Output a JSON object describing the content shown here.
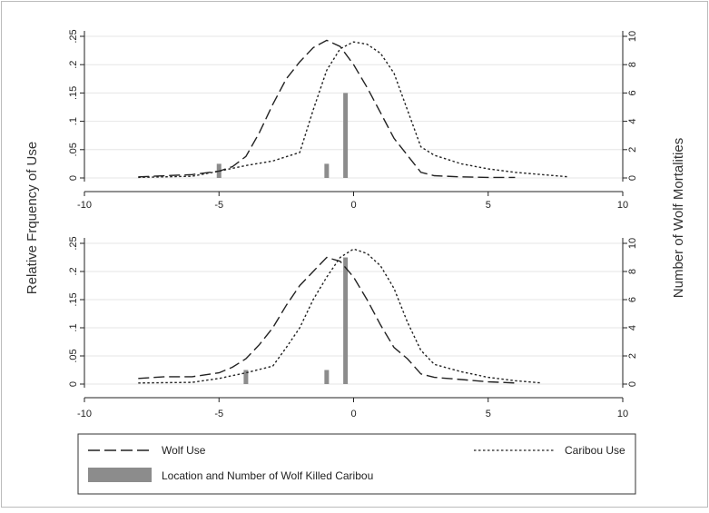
{
  "chart_data": [
    {
      "type": "line",
      "panel": "top",
      "xlim": [
        -10,
        10
      ],
      "ylim_left": [
        0,
        0.25
      ],
      "ylim_right": [
        0,
        10
      ],
      "x_ticks": [
        "-10",
        "-5",
        "0",
        "5",
        "10"
      ],
      "y_left_ticks": [
        "0",
        ".05",
        ".1",
        ".15",
        ".2",
        ".25"
      ],
      "y_right_ticks": [
        "0",
        "2",
        "4",
        "6",
        "8",
        "10"
      ],
      "grid": true,
      "series": [
        {
          "name": "Wolf Use",
          "axis": "left",
          "style": "dashed",
          "x": [
            -8,
            -7,
            -6,
            -5,
            -4.5,
            -4,
            -3.5,
            -3,
            -2.5,
            -2,
            -1.5,
            -1,
            -0.5,
            0,
            0.5,
            1,
            1.5,
            2,
            2.5,
            3,
            4,
            5,
            6
          ],
          "y": [
            0.002,
            0.004,
            0.006,
            0.012,
            0.02,
            0.038,
            0.08,
            0.13,
            0.175,
            0.205,
            0.23,
            0.243,
            0.232,
            0.2,
            0.16,
            0.115,
            0.07,
            0.04,
            0.01,
            0.004,
            0.002,
            0.001,
            0.001
          ]
        },
        {
          "name": "Caribou Use",
          "axis": "left",
          "style": "dotted",
          "x": [
            -8,
            -6,
            -5,
            -4,
            -3,
            -2,
            -1.5,
            -1,
            -0.5,
            0,
            0.5,
            1,
            1.5,
            2,
            2.5,
            3,
            4,
            5,
            6,
            7,
            8
          ],
          "y": [
            0.001,
            0.003,
            0.012,
            0.022,
            0.03,
            0.045,
            0.12,
            0.19,
            0.228,
            0.24,
            0.236,
            0.22,
            0.185,
            0.12,
            0.055,
            0.04,
            0.025,
            0.016,
            0.01,
            0.006,
            0.002
          ]
        }
      ],
      "bars": {
        "name": "Location and Number of Wolf Killed Caribou",
        "axis": "right",
        "x": [
          -5,
          -1,
          -0.3
        ],
        "values": [
          1,
          1,
          6
        ]
      }
    },
    {
      "type": "line",
      "panel": "bottom",
      "xlim": [
        -10,
        10
      ],
      "ylim_left": [
        0,
        0.25
      ],
      "ylim_right": [
        0,
        10
      ],
      "x_ticks": [
        "-10",
        "-5",
        "0",
        "5",
        "10"
      ],
      "y_left_ticks": [
        "0",
        ".05",
        ".1",
        ".15",
        ".2",
        ".25"
      ],
      "y_right_ticks": [
        "0",
        "2",
        "4",
        "6",
        "8",
        "10"
      ],
      "grid": true,
      "series": [
        {
          "name": "Wolf Use",
          "axis": "left",
          "style": "dashed",
          "x": [
            -8,
            -7,
            -6,
            -5,
            -4.5,
            -4,
            -3.5,
            -3,
            -2.5,
            -2,
            -1.5,
            -1,
            -0.5,
            0,
            0.5,
            1,
            1.5,
            2,
            2.5,
            3,
            4,
            5,
            6
          ],
          "y": [
            0.01,
            0.013,
            0.013,
            0.02,
            0.03,
            0.045,
            0.07,
            0.1,
            0.14,
            0.175,
            0.2,
            0.225,
            0.218,
            0.19,
            0.15,
            0.105,
            0.065,
            0.045,
            0.018,
            0.012,
            0.008,
            0.004,
            0.002
          ]
        },
        {
          "name": "Caribou Use",
          "axis": "left",
          "style": "dotted",
          "x": [
            -8,
            -6,
            -5,
            -4,
            -3,
            -2.5,
            -2,
            -1.5,
            -1,
            -0.5,
            0,
            0.5,
            1,
            1.5,
            2,
            2.5,
            3,
            4,
            5,
            6,
            7
          ],
          "y": [
            0.002,
            0.003,
            0.01,
            0.02,
            0.032,
            0.065,
            0.1,
            0.15,
            0.19,
            0.225,
            0.24,
            0.232,
            0.21,
            0.17,
            0.11,
            0.06,
            0.035,
            0.022,
            0.012,
            0.006,
            0.002
          ]
        }
      ],
      "bars": {
        "name": "Location and Number of Wolf Killed Caribou",
        "axis": "right",
        "x": [
          -4,
          -1,
          -0.3
        ],
        "values": [
          1,
          1,
          9
        ]
      }
    }
  ],
  "axes": {
    "left_label": "Relative Frquency of Use",
    "right_label": "Number of Wolf Mortalities"
  },
  "legend": {
    "wolf_use": "Wolf Use",
    "caribou_use": "Caribou Use",
    "kills": "Location and Number of Wolf Killed Caribou"
  },
  "colors": {
    "line": "#222222",
    "bar": "#8c8c8c",
    "grid": "#e6e6e6",
    "frame": "#222222"
  }
}
